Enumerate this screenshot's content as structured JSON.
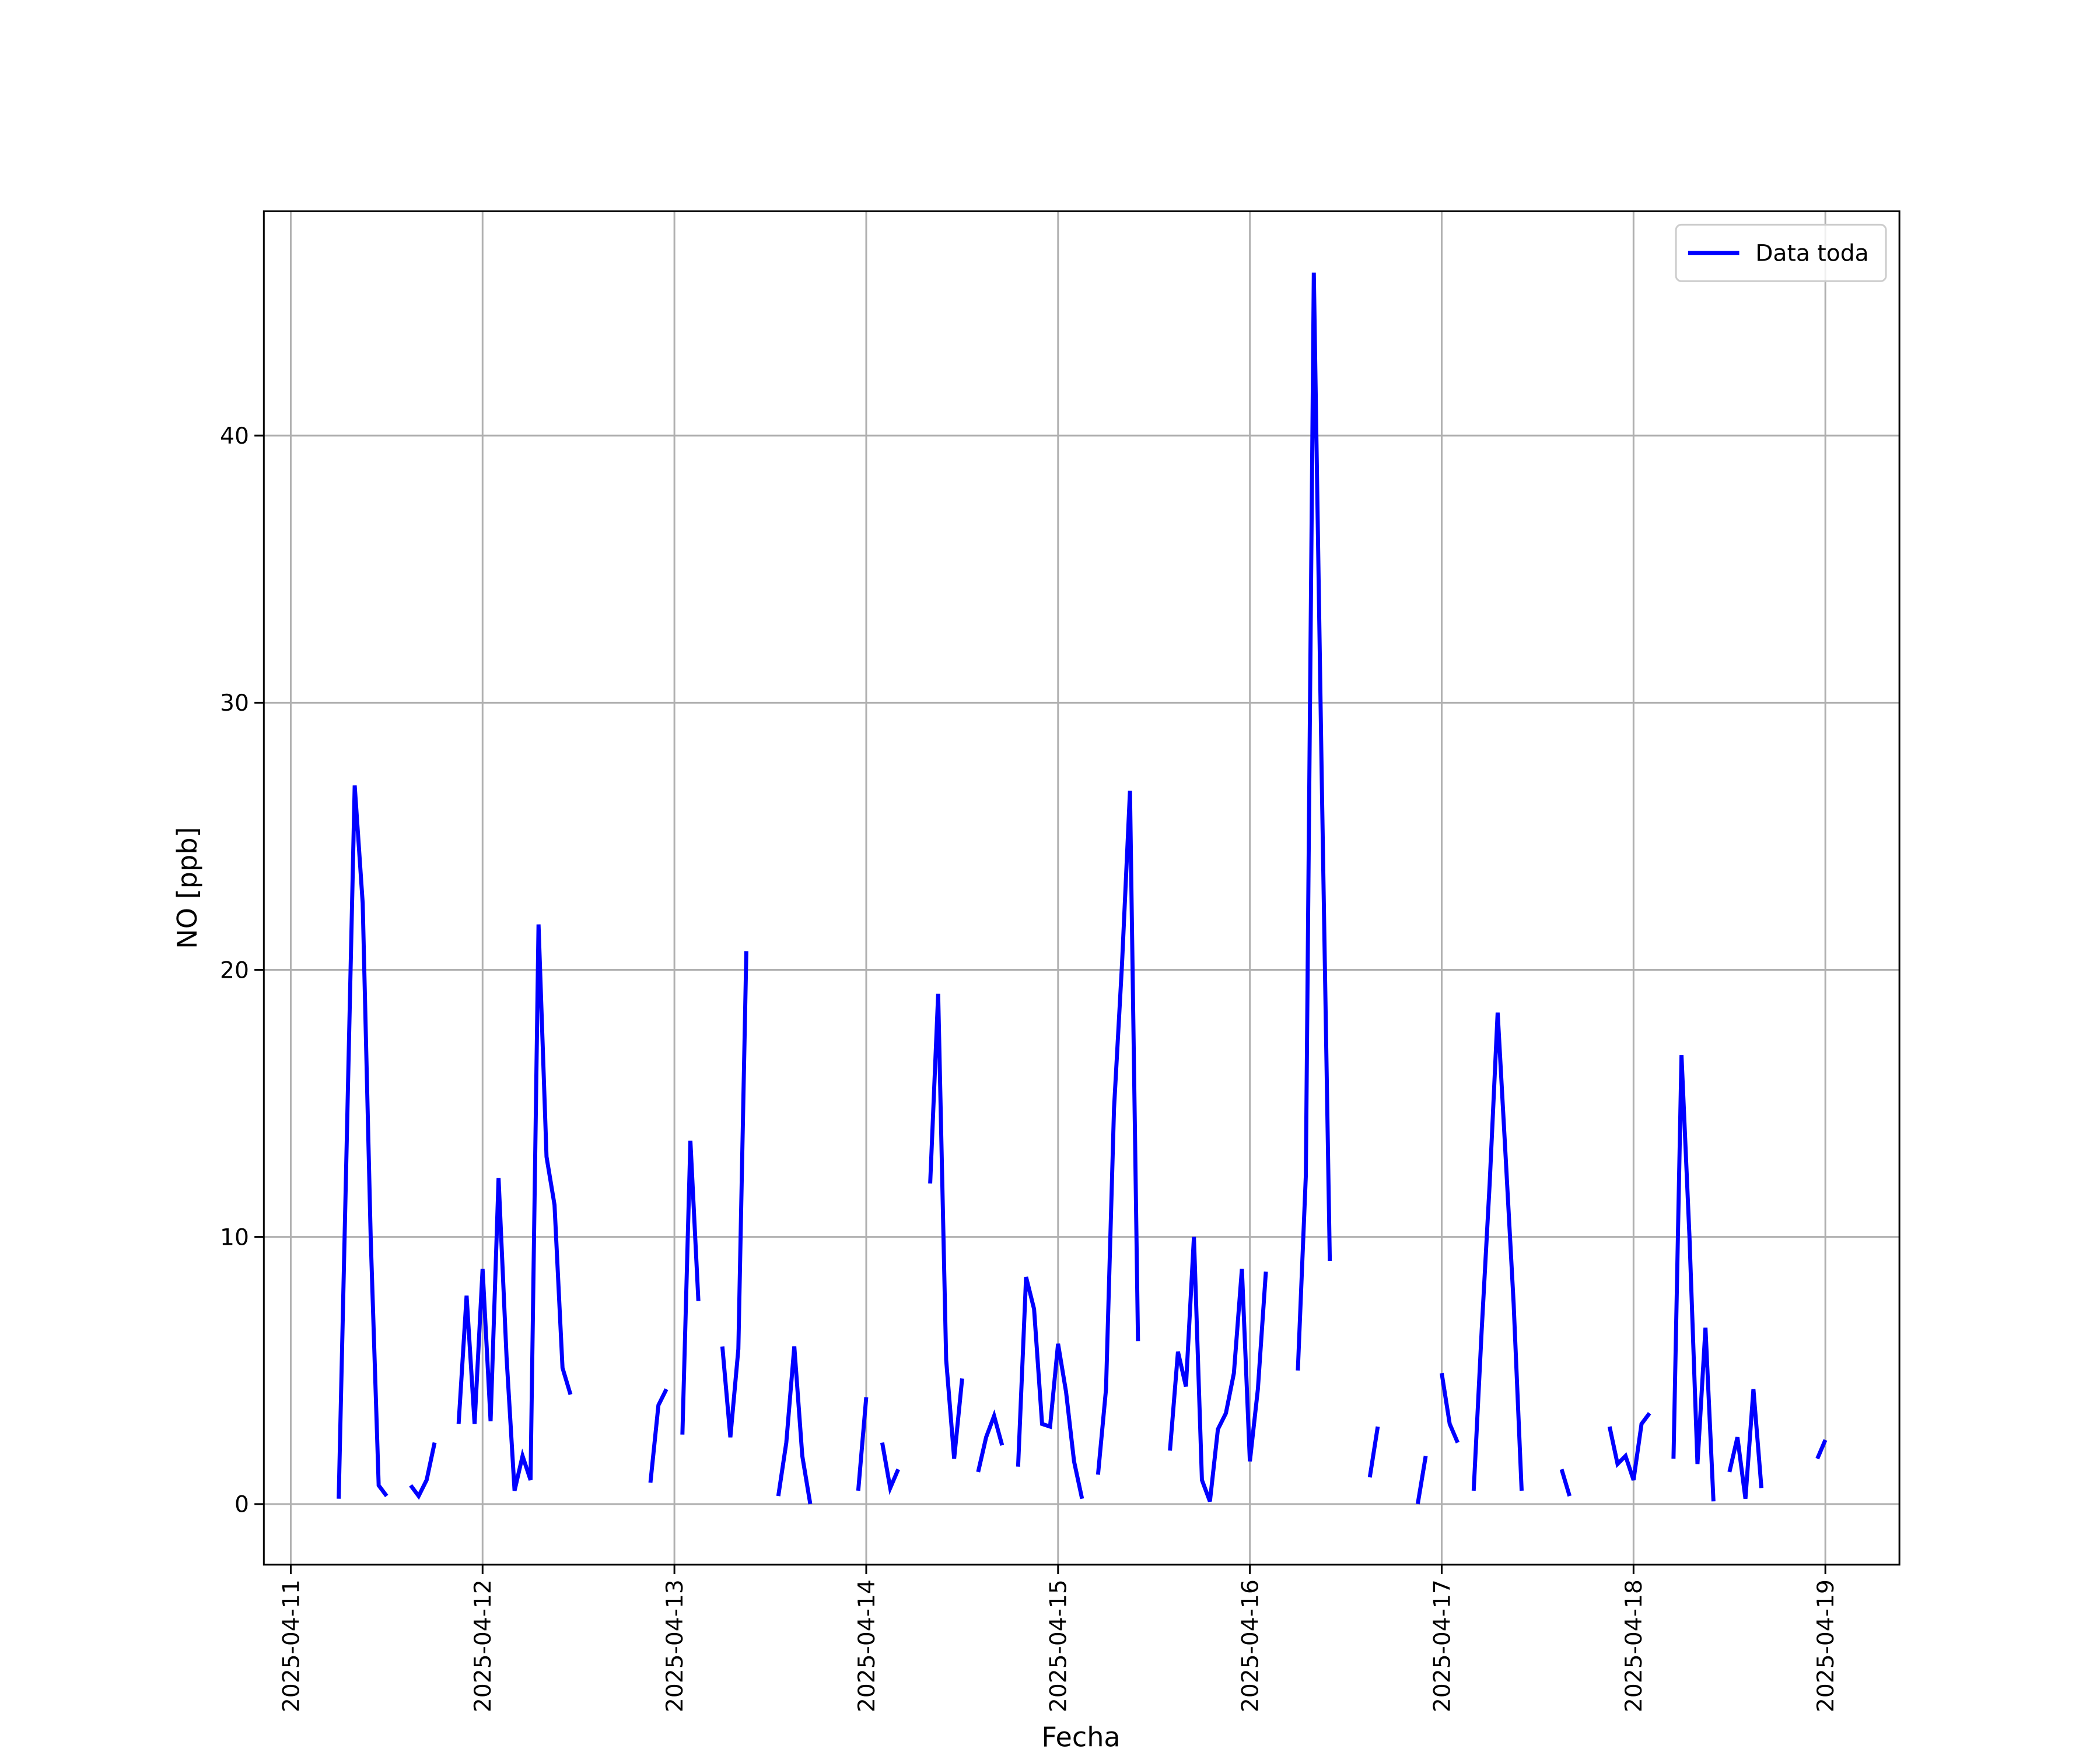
{
  "chart_data": {
    "type": "line",
    "xlabel": "Fecha",
    "ylabel": "NO [ppb]",
    "x": [
      "2025-04-11T06:00",
      "2025-04-11T07:00",
      "2025-04-11T08:00",
      "2025-04-11T09:00",
      "2025-04-11T10:00",
      "2025-04-11T11:00",
      "2025-04-11T12:00",
      "2025-04-11T13:00",
      "2025-04-11T15:00",
      "2025-04-11T16:00",
      "2025-04-11T17:00",
      "2025-04-11T18:00",
      "2025-04-11T19:00",
      "2025-04-11T21:00",
      "2025-04-11T22:00",
      "2025-04-11T23:00",
      "2025-04-12T00:00",
      "2025-04-12T01:00",
      "2025-04-12T02:00",
      "2025-04-12T03:00",
      "2025-04-12T04:00",
      "2025-04-12T05:00",
      "2025-04-12T06:00",
      "2025-04-12T07:00",
      "2025-04-12T08:00",
      "2025-04-12T09:00",
      "2025-04-12T10:00",
      "2025-04-12T11:00",
      "2025-04-12T12:00",
      "2025-04-12T21:00",
      "2025-04-12T22:00",
      "2025-04-12T23:00",
      "2025-04-13T00:00",
      "2025-04-13T01:00",
      "2025-04-13T02:00",
      "2025-04-13T03:00",
      "2025-04-13T04:00",
      "2025-04-13T06:00",
      "2025-04-13T07:00",
      "2025-04-13T08:00",
      "2025-04-13T09:00",
      "2025-04-13T10:00",
      "2025-04-13T13:00",
      "2025-04-13T14:00",
      "2025-04-13T15:00",
      "2025-04-13T16:00",
      "2025-04-13T17:00",
      "2025-04-13T18:00",
      "2025-04-13T23:00",
      "2025-04-14T00:00",
      "2025-04-14T01:00",
      "2025-04-14T02:00",
      "2025-04-14T03:00",
      "2025-04-14T04:00",
      "2025-04-14T05:00",
      "2025-04-14T08:00",
      "2025-04-14T09:00",
      "2025-04-14T10:00",
      "2025-04-14T11:00",
      "2025-04-14T12:00",
      "2025-04-14T13:00",
      "2025-04-14T14:00",
      "2025-04-14T15:00",
      "2025-04-14T16:00",
      "2025-04-14T17:00",
      "2025-04-14T18:00",
      "2025-04-14T19:00",
      "2025-04-14T20:00",
      "2025-04-14T21:00",
      "2025-04-14T22:00",
      "2025-04-14T23:00",
      "2025-04-15T00:00",
      "2025-04-15T01:00",
      "2025-04-15T02:00",
      "2025-04-15T03:00",
      "2025-04-15T04:00",
      "2025-04-15T05:00",
      "2025-04-15T06:00",
      "2025-04-15T07:00",
      "2025-04-15T08:00",
      "2025-04-15T09:00",
      "2025-04-15T10:00",
      "2025-04-15T11:00",
      "2025-04-15T14:00",
      "2025-04-15T15:00",
      "2025-04-15T16:00",
      "2025-04-15T17:00",
      "2025-04-15T18:00",
      "2025-04-15T19:00",
      "2025-04-15T20:00",
      "2025-04-15T21:00",
      "2025-04-15T22:00",
      "2025-04-15T23:00",
      "2025-04-16T00:00",
      "2025-04-16T01:00",
      "2025-04-16T02:00",
      "2025-04-16T03:00",
      "2025-04-16T06:00",
      "2025-04-16T07:00",
      "2025-04-16T08:00",
      "2025-04-16T09:00",
      "2025-04-16T10:00",
      "2025-04-16T11:00",
      "2025-04-16T15:00",
      "2025-04-16T16:00",
      "2025-04-16T17:00",
      "2025-04-16T21:00",
      "2025-04-16T22:00",
      "2025-04-16T23:00",
      "2025-04-17T00:00",
      "2025-04-17T01:00",
      "2025-04-17T02:00",
      "2025-04-17T03:00",
      "2025-04-17T04:00",
      "2025-04-17T05:00",
      "2025-04-17T06:00",
      "2025-04-17T07:00",
      "2025-04-17T08:00",
      "2025-04-17T09:00",
      "2025-04-17T10:00",
      "2025-04-17T11:00",
      "2025-04-17T15:00",
      "2025-04-17T16:00",
      "2025-04-17T17:00",
      "2025-04-17T21:00",
      "2025-04-17T22:00",
      "2025-04-17T23:00",
      "2025-04-18T00:00",
      "2025-04-18T01:00",
      "2025-04-18T02:00",
      "2025-04-18T03:00",
      "2025-04-18T05:00",
      "2025-04-18T06:00",
      "2025-04-18T07:00",
      "2025-04-18T08:00",
      "2025-04-18T09:00",
      "2025-04-18T10:00",
      "2025-04-18T11:00",
      "2025-04-18T12:00",
      "2025-04-18T13:00",
      "2025-04-18T14:00",
      "2025-04-18T15:00",
      "2025-04-18T16:00",
      "2025-04-18T17:00",
      "2025-04-18T23:00",
      "2025-04-19T00:00"
    ],
    "series": [
      {
        "name": "Data toda",
        "color": "#0000ff",
        "values": [
          0.2,
          13.5,
          26.9,
          22.5,
          10,
          0.7,
          0.3,
          null,
          0.7,
          0.3,
          0.9,
          2.3,
          null,
          3.0,
          7.8,
          3.0,
          8.8,
          3.1,
          12.2,
          5.5,
          0.5,
          1.8,
          0.9,
          21.7,
          13.0,
          11.2,
          5.1,
          4.1,
          null,
          0.8,
          3.7,
          4.3,
          null,
          2.6,
          13.6,
          7.6,
          null,
          5.9,
          2.5,
          5.8,
          20.7,
          null,
          0.3,
          2.3,
          5.9,
          1.8,
          0.0,
          null,
          0.5,
          4.0,
          null,
          2.3,
          0.6,
          1.3,
          null,
          12.0,
          19.1,
          5.4,
          1.7,
          4.7,
          null,
          1.2,
          2.5,
          3.3,
          2.2,
          null,
          1.4,
          8.5,
          7.3,
          3.0,
          2.9,
          6.0,
          4.2,
          1.6,
          0.2,
          null,
          1.1,
          4.3,
          14.8,
          20.2,
          26.7,
          6.1,
          null,
          2.0,
          5.7,
          4.4,
          10.0,
          0.9,
          0.1,
          2.8,
          3.4,
          4.9,
          8.8,
          1.6,
          4.3,
          8.7,
          null,
          5.0,
          12.3,
          46.1,
          27.0,
          9.1,
          null,
          1.0,
          2.9,
          null,
          0.0,
          1.8,
          null,
          4.9,
          3.0,
          2.3,
          null,
          0.5,
          6.5,
          12.0,
          18.4,
          13.0,
          7.5,
          0.5,
          null,
          1.3,
          0.3,
          null,
          2.9,
          1.5,
          1.8,
          0.9,
          3.0,
          3.4,
          null,
          1.7,
          16.8,
          10.0,
          1.5,
          6.6,
          0.1,
          null,
          1.2,
          2.5,
          0.2,
          4.3,
          0.6,
          null,
          1.7,
          2.4
        ]
      }
    ],
    "xlim": [
      "2025-04-10T20:38",
      "2025-04-19T09:16"
    ],
    "xticks": [
      "2025-04-11",
      "2025-04-12",
      "2025-04-13",
      "2025-04-14",
      "2025-04-15",
      "2025-04-16",
      "2025-04-17",
      "2025-04-18",
      "2025-04-19"
    ],
    "ylim": [
      -2.27,
      48.4
    ],
    "yticks": [
      0,
      10,
      20,
      30,
      40
    ],
    "grid": true,
    "legend": "upper right"
  }
}
